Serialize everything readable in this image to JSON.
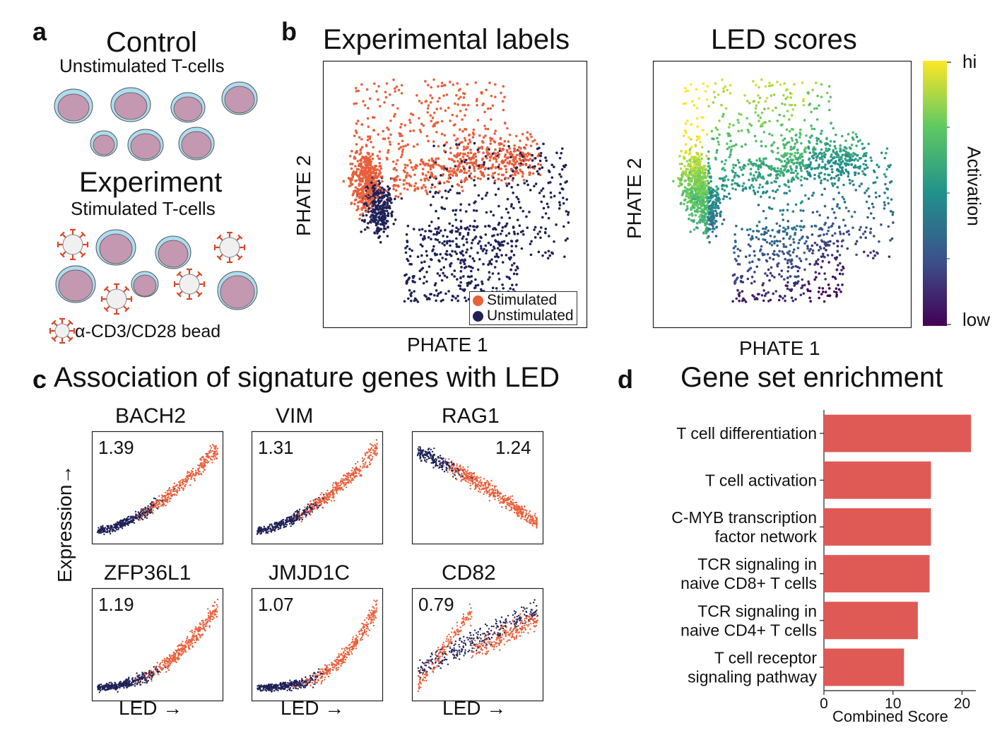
{
  "panel_a": {
    "letter": "a",
    "control_title": "Control",
    "control_sub": "Unstimulated T-cells",
    "experiment_title": "Experiment",
    "experiment_sub": "Stimulated T-cells",
    "bead_label": "α-CD3/CD28 bead"
  },
  "panel_b": {
    "letter": "b",
    "left_title": "Experimental labels",
    "right_title": "LED scores",
    "xlabel": "PHATE 1",
    "ylabel": "PHATE 2",
    "legend": [
      {
        "label": "Stimulated",
        "color": "#e8603c"
      },
      {
        "label": "Unstimulated",
        "color": "#1f2157"
      }
    ],
    "colorbar": {
      "label": "Activation",
      "top": "hi",
      "bottom": "low"
    }
  },
  "panel_c": {
    "letter": "c",
    "title": "Association of signature genes with LED",
    "ylabel": "Expression→",
    "xlabel": "LED →",
    "genes": [
      {
        "name": "BACH2",
        "score": "1.39"
      },
      {
        "name": "VIM",
        "score": "1.31"
      },
      {
        "name": "RAG1",
        "score": "1.24"
      },
      {
        "name": "ZFP36L1",
        "score": "1.19"
      },
      {
        "name": "JMJD1C",
        "score": "1.07"
      },
      {
        "name": "CD82",
        "score": "0.79"
      }
    ]
  },
  "panel_d": {
    "letter": "d",
    "title": "Gene set enrichment",
    "xlabel": "Combined Score",
    "bar_color": "#e05a55"
  },
  "chart_data": {
    "type": "bar",
    "orientation": "horizontal",
    "title": "Gene set enrichment",
    "xlabel": "Combined Score",
    "ylabel": "",
    "xlim": [
      0,
      22
    ],
    "xticks": [
      0,
      10,
      20
    ],
    "categories": [
      [
        "T cell differentiation"
      ],
      [
        "T cell activation"
      ],
      [
        "C-MYB transcription",
        "factor network"
      ],
      [
        "TCR signaling in",
        "naive CD8+ T cells"
      ],
      [
        "TCR signaling in",
        "naive CD4+ T cells"
      ],
      [
        "T cell receptor",
        "signaling pathway"
      ]
    ],
    "values": [
      21.3,
      15.5,
      15.5,
      15.3,
      13.6,
      11.6
    ]
  }
}
